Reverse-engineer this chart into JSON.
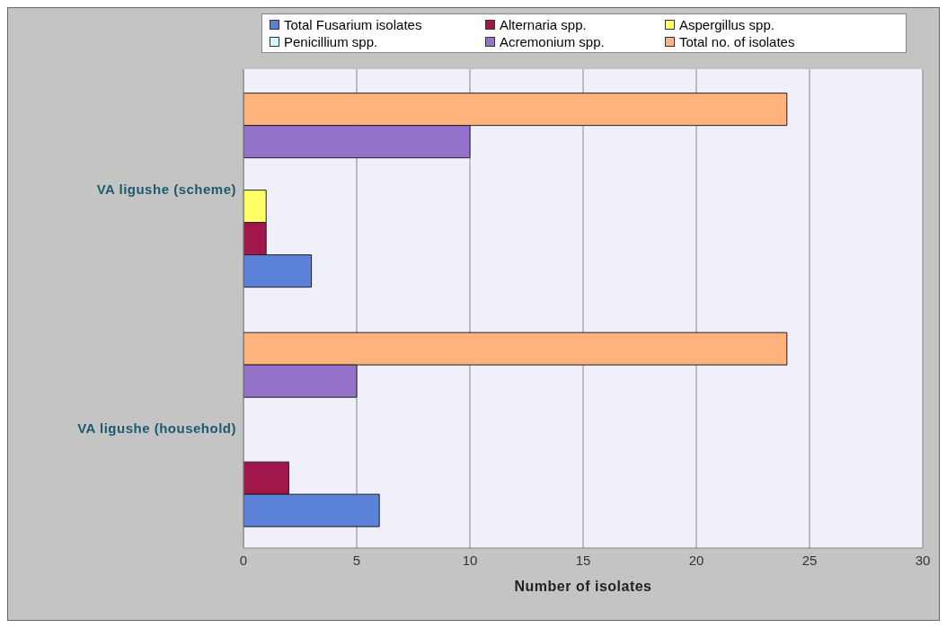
{
  "chart_data": {
    "type": "bar",
    "orientation": "horizontal",
    "xlabel": "Number of isolates",
    "categories": [
      "VA ligushe (scheme)",
      "VA ligushe (household)"
    ],
    "series": [
      {
        "name": "Total Fusarium isolates",
        "color": "#5b80d8",
        "values": [
          3,
          6
        ]
      },
      {
        "name": "Alternaria spp.",
        "color": "#a3164c",
        "values": [
          1,
          2
        ]
      },
      {
        "name": "Aspergillus spp.",
        "color": "#ffff66",
        "values": [
          1,
          0
        ]
      },
      {
        "name": "Penicillium spp.",
        "color": "#ccffff",
        "values": [
          0,
          0
        ]
      },
      {
        "name": "Acremonium spp.",
        "color": "#9572cc",
        "values": [
          10,
          5
        ]
      },
      {
        "name": "Total no. of isolates",
        "color": "#ffb27c",
        "values": [
          24,
          24
        ]
      }
    ],
    "xlim": [
      0,
      30
    ],
    "xticks": [
      0,
      5,
      10,
      15,
      20,
      25,
      30
    ],
    "grid": "x",
    "legend": "top"
  }
}
